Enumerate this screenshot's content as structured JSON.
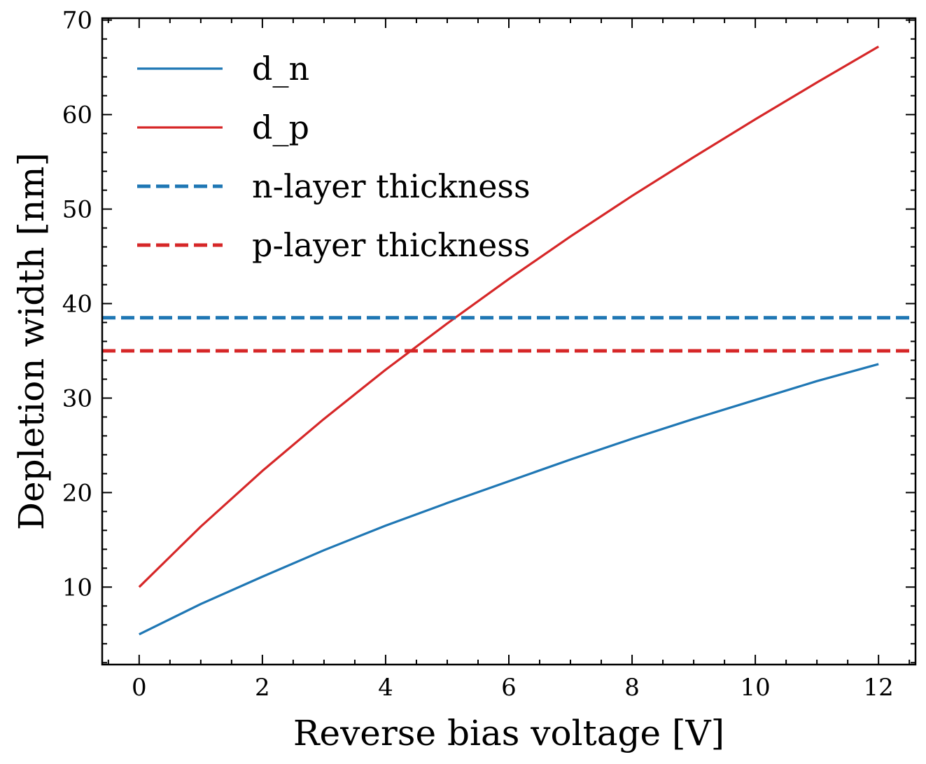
{
  "chart_data": {
    "type": "line",
    "title": "",
    "xlabel": "Reverse bias voltage [V]",
    "ylabel": "Depletion width [nm]",
    "xlim": [
      -0.6,
      12.6
    ],
    "ylim": [
      1.8,
      70.2
    ],
    "xticks": [
      0,
      2,
      4,
      6,
      8,
      10,
      12
    ],
    "yticks": [
      10,
      20,
      30,
      40,
      50,
      60,
      70
    ],
    "xtick_labels": [
      "0",
      "2",
      "4",
      "6",
      "8",
      "10",
      "12"
    ],
    "ytick_labels": [
      "10",
      "20",
      "30",
      "40",
      "50",
      "60",
      "70"
    ],
    "grid": false,
    "legend_position": "upper-left",
    "series": [
      {
        "name": "d_n",
        "legend_label": "d_n",
        "color": "#1f77b4",
        "style": "solid",
        "x": [
          0,
          1,
          2,
          3,
          4,
          5,
          6,
          7,
          8,
          9,
          10,
          11,
          12
        ],
        "y": [
          5.0,
          8.2,
          11.1,
          13.9,
          16.5,
          18.9,
          21.2,
          23.5,
          25.7,
          27.8,
          29.8,
          31.8,
          33.6
        ]
      },
      {
        "name": "d_p",
        "legend_label": "d_p",
        "color": "#d62728",
        "style": "solid",
        "x": [
          0,
          1,
          2,
          3,
          4,
          5,
          6,
          7,
          8,
          9,
          10,
          11,
          12
        ],
        "y": [
          10.0,
          16.4,
          22.3,
          27.8,
          33.0,
          37.9,
          42.6,
          47.1,
          51.4,
          55.5,
          59.5,
          63.4,
          67.2
        ]
      },
      {
        "name": "n-layer thickness",
        "legend_label": "n-layer thickness",
        "color": "#1f77b4",
        "style": "dashed",
        "y_const": 38.5
      },
      {
        "name": "p-layer thickness",
        "legend_label": "p-layer thickness",
        "color": "#d62728",
        "style": "dashed",
        "y_const": 35.0
      }
    ]
  }
}
